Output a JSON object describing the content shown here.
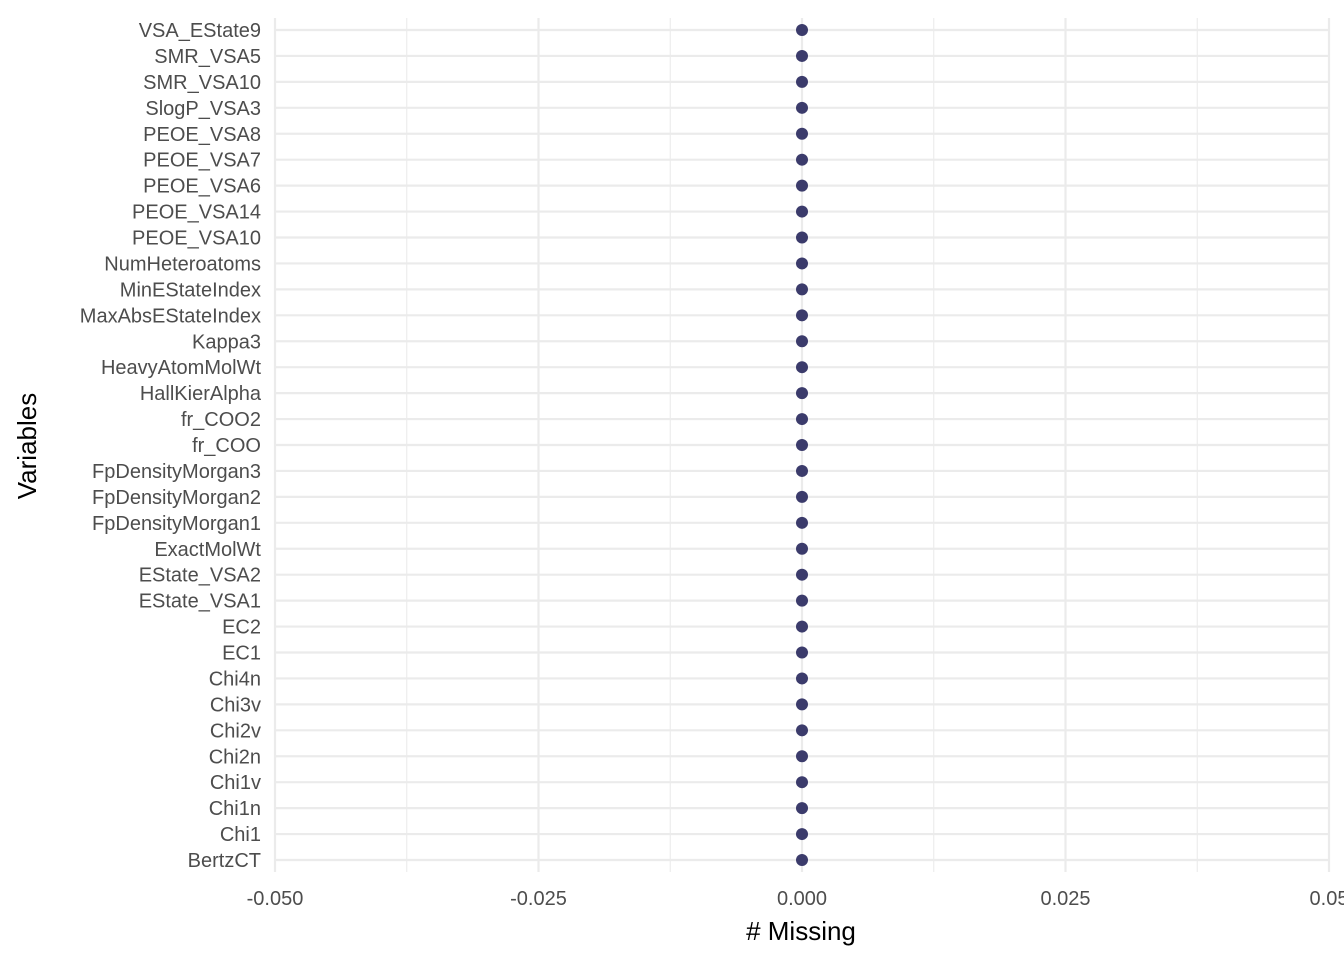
{
  "chart_data": {
    "type": "scatter",
    "xlabel": "# Missing",
    "ylabel": "Variables",
    "xlim": [
      -0.05,
      0.05
    ],
    "x_ticks": [
      -0.05,
      -0.025,
      0.0,
      0.025,
      0.05
    ],
    "x_tick_labels": [
      "-0.050",
      "-0.025",
      "0.000",
      "0.025",
      "0.05"
    ],
    "grid": true,
    "point_color": "#3b3b6b",
    "categories": [
      "VSA_EState9",
      "SMR_VSA5",
      "SMR_VSA10",
      "SlogP_VSA3",
      "PEOE_VSA8",
      "PEOE_VSA7",
      "PEOE_VSA6",
      "PEOE_VSA14",
      "PEOE_VSA10",
      "NumHeteroatoms",
      "MinEStateIndex",
      "MaxAbsEStateIndex",
      "Kappa3",
      "HeavyAtomMolWt",
      "HallKierAlpha",
      "fr_COO2",
      "fr_COO",
      "FpDensityMorgan3",
      "FpDensityMorgan2",
      "FpDensityMorgan1",
      "ExactMolWt",
      "EState_VSA2",
      "EState_VSA1",
      "EC2",
      "EC1",
      "Chi4n",
      "Chi3v",
      "Chi2v",
      "Chi2n",
      "Chi1v",
      "Chi1n",
      "Chi1",
      "BertzCT"
    ],
    "values": [
      0,
      0,
      0,
      0,
      0,
      0,
      0,
      0,
      0,
      0,
      0,
      0,
      0,
      0,
      0,
      0,
      0,
      0,
      0,
      0,
      0,
      0,
      0,
      0,
      0,
      0,
      0,
      0,
      0,
      0,
      0,
      0,
      0
    ]
  }
}
